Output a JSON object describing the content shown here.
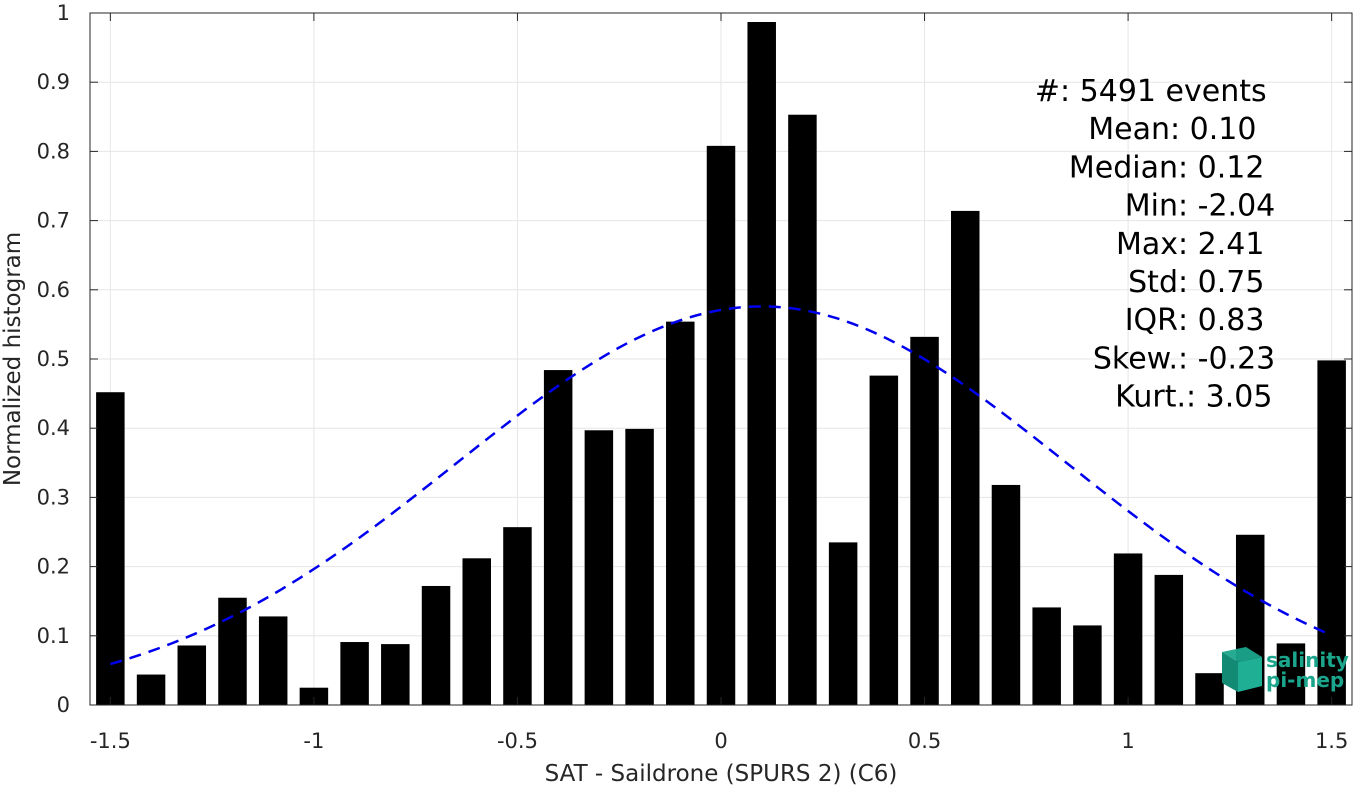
{
  "chart_data": {
    "type": "bar",
    "xlabel": "SAT - Saildrone (SPURS 2) (C6)",
    "ylabel": "Normalized histogram",
    "xlim": [
      -1.55,
      1.55
    ],
    "ylim": [
      0,
      1
    ],
    "grid": true,
    "x_ticks": [
      -1.5,
      -1,
      -0.5,
      0,
      0.5,
      1,
      1.5
    ],
    "x_tick_labels": [
      "-1.5",
      "-1",
      "-0.5",
      "0",
      "0.5",
      "1",
      "1.5"
    ],
    "y_ticks": [
      0,
      0.1,
      0.2,
      0.3,
      0.4,
      0.5,
      0.6,
      0.7,
      0.8,
      0.9,
      1
    ],
    "y_tick_labels": [
      "0",
      "0.1",
      "0.2",
      "0.3",
      "0.4",
      "0.5",
      "0.6",
      "0.7",
      "0.8",
      "0.9",
      "1"
    ],
    "bar_width": 0.07,
    "bar_color": "#000000",
    "x": [
      -1.5,
      -1.4,
      -1.3,
      -1.2,
      -1.1,
      -1.0,
      -0.9,
      -0.8,
      -0.7,
      -0.6,
      -0.5,
      -0.4,
      -0.3,
      -0.2,
      -0.1,
      0.0,
      0.1,
      0.2,
      0.3,
      0.4,
      0.5,
      0.6,
      0.7,
      0.8,
      0.9,
      1.0,
      1.1,
      1.2,
      1.3,
      1.4,
      1.5
    ],
    "values": [
      0.452,
      0.044,
      0.086,
      0.155,
      0.128,
      0.025,
      0.091,
      0.088,
      0.172,
      0.212,
      0.257,
      0.484,
      0.397,
      0.399,
      0.554,
      0.808,
      0.987,
      0.853,
      0.235,
      0.476,
      0.532,
      0.714,
      0.318,
      0.141,
      0.115,
      0.219,
      0.188,
      0.046,
      0.246,
      0.089,
      0.498
    ],
    "fit_curve": {
      "style": "dashed",
      "color": "#0000ee",
      "mean": 0.1,
      "std": 0.75,
      "peak": 0.576,
      "x_range": [
        -1.5,
        1.5
      ]
    },
    "stats": [
      "#  : 5491 events",
      "Mean : 0.10",
      "Median : 0.12",
      "Min : -2.04",
      "Max : 2.41",
      "Std : 0.75",
      "IQR : 0.83",
      "Skew. : -0.23",
      "Kurt. : 3.05"
    ],
    "logo": {
      "line1": "salinity",
      "line2": "pi-mep",
      "color": "#1aa58c"
    }
  }
}
